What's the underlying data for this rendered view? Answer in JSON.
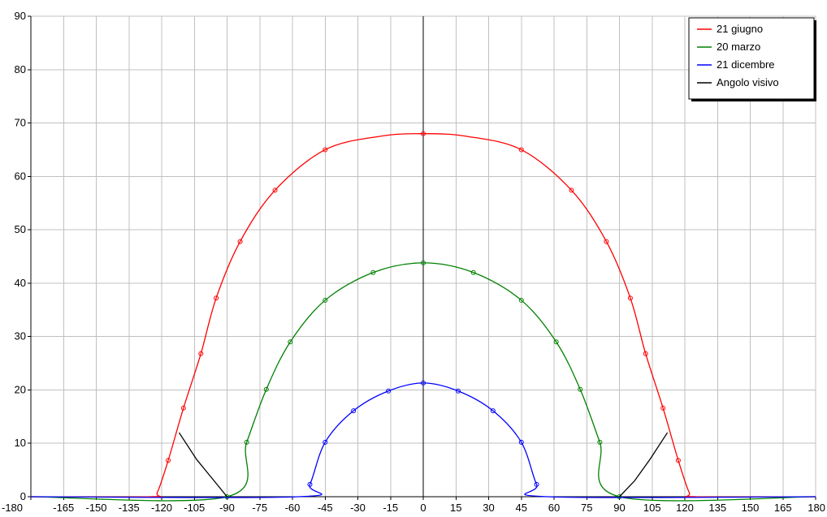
{
  "chart_data": {
    "type": "line",
    "title": "",
    "xlabel": "",
    "ylabel": "",
    "xlim": [
      -180,
      180
    ],
    "ylim": [
      0,
      90
    ],
    "x_ticks": [
      -180,
      -165,
      -150,
      -135,
      -120,
      -105,
      -90,
      -75,
      -60,
      -45,
      -30,
      -15,
      0,
      15,
      30,
      45,
      60,
      75,
      90,
      105,
      120,
      135,
      150,
      165,
      180
    ],
    "y_ticks": [
      0,
      10,
      20,
      30,
      40,
      50,
      60,
      70,
      80,
      90
    ],
    "grid": true,
    "legend_position": "top-right",
    "vertical_line_x": 0,
    "series": [
      {
        "name": "21 giugno",
        "color": "#ff0000",
        "points": [
          [
            -180,
            0
          ],
          [
            -125,
            0
          ],
          [
            -122,
            0.8
          ],
          [
            -117,
            6.8
          ],
          [
            -110,
            16.6
          ],
          [
            -102,
            26.8
          ],
          [
            -95,
            37.2
          ],
          [
            -84,
            47.8
          ],
          [
            -68,
            57.4
          ],
          [
            -45,
            65
          ],
          [
            -20,
            67.5
          ],
          [
            0,
            68
          ],
          [
            20,
            67.5
          ],
          [
            45,
            65
          ],
          [
            68,
            57.4
          ],
          [
            84,
            47.8
          ],
          [
            95,
            37.2
          ],
          [
            102,
            26.8
          ],
          [
            110,
            16.6
          ],
          [
            117,
            6.8
          ],
          [
            122,
            0.8
          ],
          [
            125,
            0
          ],
          [
            180,
            0
          ]
        ],
        "markers": [
          [
            -117,
            6.8
          ],
          [
            -110,
            16.6
          ],
          [
            -102,
            26.8
          ],
          [
            -95,
            37.2
          ],
          [
            -84,
            47.8
          ],
          [
            -68,
            57.4
          ],
          [
            -45,
            65
          ],
          [
            0,
            68
          ],
          [
            45,
            65
          ],
          [
            68,
            57.4
          ],
          [
            84,
            47.8
          ],
          [
            95,
            37.2
          ],
          [
            102,
            26.8
          ],
          [
            110,
            16.6
          ],
          [
            117,
            6.8
          ]
        ]
      },
      {
        "name": "20 marzo",
        "color": "#008000",
        "points": [
          [
            -180,
            0
          ],
          [
            -90,
            0
          ],
          [
            -81,
            10.2
          ],
          [
            -72,
            20.1
          ],
          [
            -61,
            29
          ],
          [
            -45,
            36.8
          ],
          [
            -23,
            42
          ],
          [
            0,
            43.8
          ],
          [
            23,
            42
          ],
          [
            45,
            36.8
          ],
          [
            61,
            29
          ],
          [
            72,
            20.1
          ],
          [
            81,
            10.2
          ],
          [
            90,
            0
          ],
          [
            180,
            0
          ]
        ],
        "markers": [
          [
            -90,
            0
          ],
          [
            -81,
            10.2
          ],
          [
            -72,
            20.1
          ],
          [
            -61,
            29
          ],
          [
            -45,
            36.8
          ],
          [
            -23,
            42
          ],
          [
            0,
            43.8
          ],
          [
            23,
            42
          ],
          [
            45,
            36.8
          ],
          [
            61,
            29
          ],
          [
            72,
            20.1
          ],
          [
            81,
            10.2
          ],
          [
            90,
            0
          ]
        ]
      },
      {
        "name": "21 dicembre",
        "color": "#0000ff",
        "points": [
          [
            -180,
            0
          ],
          [
            -57,
            0
          ],
          [
            -52,
            2.3
          ],
          [
            -45,
            10.2
          ],
          [
            -32,
            16.1
          ],
          [
            -16,
            19.8
          ],
          [
            0,
            21.3
          ],
          [
            16,
            19.8
          ],
          [
            32,
            16.1
          ],
          [
            45,
            10.2
          ],
          [
            52,
            2.3
          ],
          [
            57,
            0
          ],
          [
            180,
            0
          ]
        ],
        "markers": [
          [
            -52,
            2.3
          ],
          [
            -45,
            10.2
          ],
          [
            -32,
            16.1
          ],
          [
            -16,
            19.8
          ],
          [
            0,
            21.3
          ],
          [
            16,
            19.8
          ],
          [
            32,
            16.1
          ],
          [
            45,
            10.2
          ],
          [
            52,
            2.3
          ]
        ]
      },
      {
        "name": "Angolo visivo",
        "color": "#000000",
        "segments": [
          [
            [
              -112,
              12
            ],
            [
              -104,
              7
            ],
            [
              -96,
              3
            ],
            [
              -90,
              0
            ]
          ],
          [
            [
              90,
              0
            ],
            [
              97,
              3
            ],
            [
              104,
              7
            ],
            [
              112,
              12
            ]
          ]
        ]
      }
    ]
  }
}
